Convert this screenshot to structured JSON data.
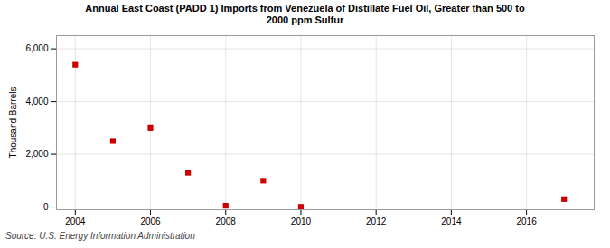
{
  "chart_data": {
    "type": "scatter",
    "title": "Annual East Coast (PADD 1) Imports from Venezuela of Distillate Fuel Oil, Greater than 500 to\n2000 ppm Sulfur",
    "ylabel": "Thousand Barrels",
    "source": "Source: U.S. Energy Information Administration",
    "x": [
      2004,
      2005,
      2006,
      2007,
      2008,
      2009,
      2010,
      2017
    ],
    "values": [
      5400,
      2500,
      3000,
      1300,
      50,
      1000,
      10,
      300
    ],
    "color": "#cc0000",
    "marker": "square",
    "xlim": [
      2003.5,
      2017.8
    ],
    "ylim": [
      -100,
      6500
    ],
    "xticks": [
      2004,
      2006,
      2008,
      2010,
      2012,
      2014,
      2016
    ],
    "yticks": [
      0,
      {
        "value": 2000,
        "label": "2,000"
      },
      {
        "value": 4000,
        "label": "4,000"
      },
      {
        "value": 6000,
        "label": "6,000"
      }
    ],
    "grid": true
  }
}
